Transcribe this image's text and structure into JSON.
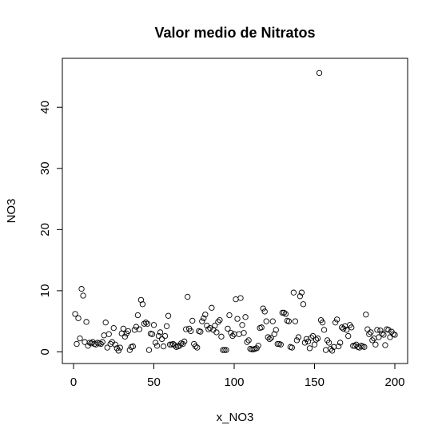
{
  "chart_data": {
    "type": "scatter",
    "title": "Valor medio de Nitratos",
    "xlabel": "x_NO3",
    "ylabel": "NO3",
    "x": [
      1,
      2,
      3,
      4,
      5,
      6,
      7,
      8,
      9,
      10,
      11,
      12,
      13,
      14,
      15,
      16,
      17,
      18,
      19,
      20,
      21,
      22,
      23,
      24,
      25,
      26,
      27,
      28,
      29,
      30,
      31,
      32,
      33,
      34,
      35,
      36,
      37,
      38,
      39,
      40,
      41,
      42,
      43,
      44,
      45,
      46,
      47,
      48,
      49,
      50,
      51,
      52,
      53,
      54,
      55,
      56,
      57,
      58,
      59,
      60,
      61,
      62,
      63,
      64,
      65,
      66,
      67,
      68,
      69,
      70,
      71,
      72,
      73,
      74,
      75,
      76,
      77,
      78,
      79,
      80,
      81,
      82,
      83,
      84,
      85,
      86,
      87,
      88,
      89,
      90,
      91,
      92,
      93,
      94,
      95,
      96,
      97,
      98,
      99,
      100,
      101,
      102,
      103,
      104,
      105,
      106,
      107,
      108,
      109,
      110,
      111,
      112,
      113,
      114,
      115,
      116,
      117,
      118,
      119,
      120,
      121,
      122,
      123,
      124,
      125,
      126,
      127,
      128,
      129,
      130,
      131,
      132,
      133,
      134,
      135,
      136,
      137,
      138,
      139,
      140,
      141,
      142,
      143,
      144,
      145,
      146,
      147,
      148,
      149,
      150,
      151,
      152,
      153,
      154,
      155,
      156,
      157,
      158,
      159,
      160,
      161,
      162,
      163,
      164,
      165,
      166,
      167,
      168,
      169,
      170,
      171,
      172,
      173,
      174,
      175,
      176,
      177,
      178,
      179,
      180,
      181,
      182,
      183,
      184,
      185,
      186,
      187,
      188,
      189,
      190,
      191,
      192,
      193,
      194,
      195,
      196,
      197,
      198,
      199,
      200
    ],
    "values": [
      6.2,
      1.3,
      5.5,
      2.2,
      10.3,
      9.2,
      1.6,
      4.9,
      1.0,
      1.5,
      1.4,
      1.6,
      1.3,
      1.2,
      1.5,
      1.4,
      1.3,
      1.6,
      2.7,
      4.8,
      0.7,
      2.9,
      1.3,
      1.6,
      3.9,
      1.2,
      0.6,
      0.2,
      0.7,
      3.0,
      3.8,
      2.5,
      3.0,
      3.4,
      0.3,
      0.8,
      0.9,
      3.6,
      4.1,
      6.0,
      3.7,
      8.5,
      7.8,
      4.6,
      4.8,
      4.6,
      0.3,
      3.0,
      2.9,
      4.4,
      1.5,
      1.0,
      2.6,
      3.2,
      2.1,
      0.9,
      2.6,
      4.2,
      5.9,
      1.2,
      1.2,
      1.3,
      1.1,
      0.8,
      0.9,
      1.0,
      1.4,
      1.3,
      1.7,
      3.7,
      9.0,
      3.8,
      3.4,
      5.1,
      1.3,
      0.9,
      0.7,
      3.4,
      3.3,
      5.0,
      5.5,
      6.1,
      4.3,
      3.7,
      3.9,
      7.2,
      3.6,
      4.3,
      3.2,
      4.9,
      5.2,
      2.5,
      0.3,
      0.3,
      0.3,
      3.8,
      6.0,
      3.1,
      2.6,
      2.9,
      8.6,
      5.4,
      2.9,
      8.8,
      4.4,
      3.1,
      5.7,
      1.6,
      1.9,
      0.5,
      0.4,
      0.4,
      0.5,
      0.6,
      1.0,
      3.9,
      4.0,
      7.1,
      6.6,
      5.0,
      2.4,
      2.1,
      2.3,
      5.0,
      2.9,
      3.6,
      1.3,
      1.3,
      1.2,
      6.4,
      6.4,
      6.2,
      5.1,
      5.0,
      0.8,
      0.7,
      9.7,
      5.0,
      1.9,
      2.4,
      9.1,
      9.7,
      7.8,
      1.5,
      2.1,
      1.7,
      0.6,
      2.3,
      2.6,
      1.2,
      2.0,
      2.2,
      45.6,
      5.2,
      4.8,
      3.6,
      0.3,
      1.9,
      1.5,
      0.5,
      0.2,
      0.8,
      4.8,
      5.3,
      0.9,
      1.5,
      4.0,
      3.8,
      4.2,
      3.6,
      2.6,
      4.4,
      4.0,
      1.0,
      1.0,
      1.2,
      0.8,
      0.7,
      1.0,
      0.9,
      0.8,
      6.1,
      3.7,
      2.9,
      3.2,
      1.9,
      2.2,
      1.2,
      3.6,
      2.4,
      3.5,
      3.0,
      2.8,
      1.1,
      3.7,
      3.6,
      2.4,
      3.3,
      2.9,
      2.8
    ],
    "color": "#000000",
    "xlim": [
      -6.96,
      207.96
    ],
    "xticks": [
      0,
      50,
      100,
      150,
      200
    ],
    "ylim": [
      -1.9,
      48
    ],
    "yticks": [
      0,
      10,
      20,
      30,
      40
    ]
  }
}
